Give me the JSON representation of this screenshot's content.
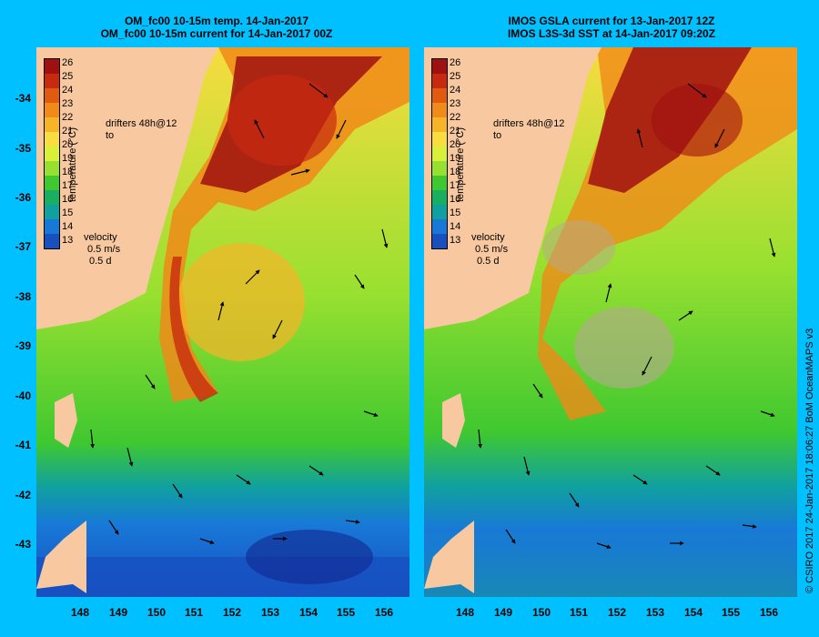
{
  "left_panel": {
    "title_line1": "OM_fc00 10-15m temp. 14-Jan-2017",
    "title_line2": "OM_fc00 10-15m current for 14-Jan-2017 00Z"
  },
  "right_panel": {
    "title_line1": "IMOS GSLA current for 13-Jan-2017 12Z",
    "title_line2": "IMOS L3S-3d SST at 14-Jan-2017 09:20Z"
  },
  "latitude_labels": [
    "-34",
    "-35",
    "-36",
    "-37",
    "-38",
    "-39",
    "-40",
    "-41",
    "-42",
    "-43"
  ],
  "longitude_labels": [
    "148",
    "149",
    "150",
    "151",
    "152",
    "153",
    "154",
    "155",
    "156"
  ],
  "colorbar": {
    "label": "temperature (°C)",
    "ticks": [
      "26",
      "25",
      "24",
      "23",
      "22",
      "21",
      "20",
      "19",
      "18",
      "17",
      "16",
      "15",
      "14",
      "13"
    ],
    "colors": [
      "#a01010",
      "#c82a10",
      "#e05a10",
      "#f08a18",
      "#f8b428",
      "#f8dc40",
      "#d8f038",
      "#98e030",
      "#40c830",
      "#18b060",
      "#10a0a0",
      "#1878d8",
      "#1850c0",
      "#102890"
    ]
  },
  "drifters": {
    "line1": "drifters 48h@12",
    "line2": "to"
  },
  "velocity_legend": {
    "title": "velocity",
    "speed": "0.5 m/s",
    "time": "0.5 d"
  },
  "credit": "© CSIRO 2017   24-Jan-2017 18:06:27 BoM OceanMAPS v3",
  "colors": {
    "background": "#00c0ff",
    "land": "#f8c8a0"
  }
}
